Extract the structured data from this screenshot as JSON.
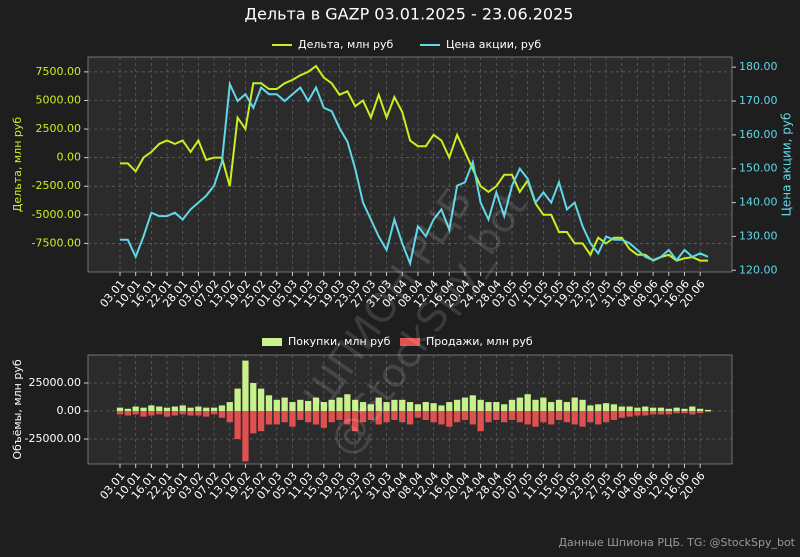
{
  "chart_data": [
    {
      "type": "line",
      "title": "Дельта в GAZP 03.01.2025 - 23.06.2025",
      "ylabel": "Дельта, млн руб",
      "y2label": "Цена акции, руб",
      "categories": [
        "03.01",
        null,
        "10.01",
        null,
        "16.01",
        null,
        "22.01",
        null,
        "28.01",
        null,
        "03.02",
        null,
        "07.02",
        null,
        "13.02",
        null,
        "19.02",
        null,
        "25.02",
        null,
        "01.03",
        null,
        "05.03",
        null,
        "11.03",
        null,
        "15.03",
        null,
        "19.03",
        null,
        "23.03",
        null,
        "27.03",
        null,
        "31.03",
        null,
        "04.04",
        null,
        "08.04",
        null,
        "12.04",
        null,
        "16.04",
        null,
        "20.04",
        null,
        "24.04",
        null,
        "28.04",
        null,
        "03.05",
        null,
        "07.05",
        null,
        "11.05",
        null,
        "15.05",
        null,
        "19.05",
        null,
        "23.05",
        null,
        "27.05",
        null,
        "31.05",
        null,
        "04.06",
        null,
        "08.06",
        null,
        "12.06",
        null,
        "16.06",
        null,
        "20.06",
        null
      ],
      "series": [
        {
          "name": "Дельта, млн руб",
          "color": "#c8f020",
          "values": [
            -500,
            -500,
            -1200,
            0,
            500,
            1200,
            1500,
            1200,
            1500,
            500,
            1500,
            -200,
            0,
            0,
            -2500,
            3500,
            2500,
            6500,
            6500,
            6000,
            6000,
            6500,
            6800,
            7200,
            7500,
            8000,
            7000,
            6500,
            5500,
            5800,
            4500,
            5000,
            3500,
            5500,
            3500,
            5300,
            4000,
            1500,
            1000,
            1000,
            2000,
            1500,
            0,
            2000,
            500,
            -1000,
            -2500,
            -3000,
            -2500,
            -1500,
            -1500,
            -3000,
            -2000,
            -4000,
            -5000,
            -5000,
            -6500,
            -6500,
            -7500,
            -7500,
            -8500,
            -7000,
            -7500,
            -7000,
            -7000,
            -8000,
            -8500,
            -8500,
            -9000,
            -8700,
            -8500,
            -9000,
            -8800,
            -8700,
            -9000,
            -9000
          ]
        },
        {
          "name": "Цена акции, руб",
          "color": "#5fd8e8",
          "axis": "y2",
          "values": [
            129,
            129,
            124,
            130,
            137,
            136,
            136,
            137,
            135,
            138,
            140,
            142,
            145,
            152,
            175,
            170,
            172,
            168,
            174,
            172,
            172,
            170,
            172,
            174,
            170,
            174,
            168,
            167,
            162,
            158,
            150,
            140,
            135,
            130,
            126,
            135,
            128,
            122,
            133,
            130,
            135,
            138,
            132,
            145,
            146,
            152,
            140,
            135,
            143,
            136,
            145,
            150,
            147,
            140,
            143,
            140,
            146,
            138,
            140,
            133,
            128,
            125,
            130,
            129,
            129,
            128,
            126,
            124,
            123,
            124,
            126,
            123,
            126,
            124,
            125,
            124
          ]
        }
      ],
      "ylim": [
        -10000,
        8800
      ],
      "yticks": [
        {
          "value": -7500,
          "label": "-7500.00"
        },
        {
          "value": -5000,
          "label": "-5000.00"
        },
        {
          "value": -2500,
          "label": "-2500.00"
        },
        {
          "value": 0,
          "label": "0.00"
        },
        {
          "value": 2500,
          "label": "2500.00"
        },
        {
          "value": 5000,
          "label": "5000.00"
        },
        {
          "value": 7500,
          "label": "7500.00"
        }
      ],
      "y2lim": [
        119.5,
        183
      ],
      "y2ticks": [
        {
          "value": 120,
          "label": "120.00"
        },
        {
          "value": 130,
          "label": "130.00"
        },
        {
          "value": 140,
          "label": "140.00"
        },
        {
          "value": 150,
          "label": "150.00"
        },
        {
          "value": 160,
          "label": "160.00"
        },
        {
          "value": 170,
          "label": "170.00"
        },
        {
          "value": 180,
          "label": "180.00"
        }
      ],
      "grid": true
    },
    {
      "type": "bar",
      "ylabel": "Объёмы, млн руб",
      "categories": [
        "03.01",
        null,
        "10.01",
        null,
        "16.01",
        null,
        "22.01",
        null,
        "28.01",
        null,
        "03.02",
        null,
        "07.02",
        null,
        "13.02",
        null,
        "19.02",
        null,
        "25.02",
        null,
        "01.03",
        null,
        "05.03",
        null,
        "11.03",
        null,
        "15.03",
        null,
        "19.03",
        null,
        "23.03",
        null,
        "27.03",
        null,
        "31.03",
        null,
        "04.04",
        null,
        "08.04",
        null,
        "12.04",
        null,
        "16.04",
        null,
        "20.04",
        null,
        "24.04",
        null,
        "28.04",
        null,
        "03.05",
        null,
        "07.05",
        null,
        "11.05",
        null,
        "15.05",
        null,
        "19.05",
        null,
        "23.05",
        null,
        "27.05",
        null,
        "31.05",
        null,
        "04.06",
        null,
        "08.06",
        null,
        "12.06",
        null,
        "16.06",
        null,
        "20.06",
        null
      ],
      "series": [
        {
          "name": "Покупки, млн руб",
          "color": "#c8f08c",
          "values": [
            3000,
            2000,
            4000,
            3000,
            5000,
            4000,
            3000,
            4000,
            5000,
            3000,
            4000,
            3000,
            3000,
            5000,
            8000,
            20000,
            45000,
            25000,
            20000,
            14000,
            10000,
            12000,
            8000,
            10000,
            9000,
            12000,
            8000,
            10000,
            12000,
            15000,
            10000,
            8000,
            6000,
            12000,
            8000,
            10000,
            10000,
            8000,
            6000,
            8000,
            7000,
            5000,
            8000,
            10000,
            12000,
            14000,
            10000,
            8000,
            8000,
            6000,
            10000,
            12000,
            15000,
            10000,
            12000,
            8000,
            10000,
            8000,
            12000,
            10000,
            5000,
            6000,
            7000,
            6000,
            4000,
            4000,
            3000,
            4000,
            3000,
            3000,
            2000,
            3000,
            2000,
            4000,
            2000,
            1000
          ]
        },
        {
          "name": "Продажи, млн руб",
          "color": "#e05050",
          "values": [
            -3000,
            -4000,
            -3000,
            -5000,
            -4000,
            -3000,
            -5000,
            -4000,
            -3000,
            -4000,
            -4000,
            -5000,
            -3000,
            -6000,
            -10000,
            -25000,
            -45000,
            -20000,
            -18000,
            -12000,
            -12000,
            -10000,
            -14000,
            -8000,
            -10000,
            -12000,
            -15000,
            -10000,
            -8000,
            -12000,
            -18000,
            -10000,
            -8000,
            -12000,
            -10000,
            -8000,
            -10000,
            -12000,
            -6000,
            -8000,
            -10000,
            -12000,
            -14000,
            -10000,
            -8000,
            -12000,
            -18000,
            -10000,
            -8000,
            -10000,
            -8000,
            -10000,
            -12000,
            -14000,
            -10000,
            -12000,
            -8000,
            -10000,
            -12000,
            -14000,
            -10000,
            -12000,
            -10000,
            -8000,
            -6000,
            -5000,
            -4000,
            -4000,
            -3000,
            -3000,
            -3000,
            -2000,
            -2000,
            -3000,
            -2000,
            -1000
          ]
        }
      ],
      "ylim": [
        -47300,
        50000
      ],
      "yticks": [
        {
          "value": -25000,
          "label": "-25000.00"
        },
        {
          "value": 0,
          "label": "0.00"
        },
        {
          "value": 25000,
          "label": "25000.00"
        }
      ],
      "grid": true
    }
  ],
  "watermark": [
    "ШПИОН РЦБ",
    "@StockSpy_bot"
  ],
  "footer": "Данные Шпиона РЦБ. TG: @StockSpy_bot"
}
